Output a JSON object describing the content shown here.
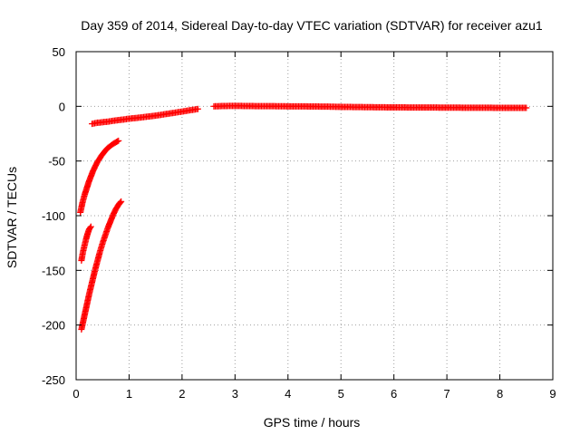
{
  "chart_data": {
    "type": "scatter",
    "title": "Day 359 of 2014, Sidereal Day-to-day VTEC variation (SDTVAR) for receiver azu1",
    "xlabel": "GPS time / hours",
    "ylabel": "SDTVAR / TECUs",
    "xlim": [
      0,
      9
    ],
    "ylim": [
      -250,
      50
    ],
    "xticks": [
      "0",
      "1",
      "2",
      "3",
      "4",
      "5",
      "6",
      "7",
      "8",
      "9"
    ],
    "yticks": [
      "50",
      "0",
      "-50",
      "-100",
      "-150",
      "-200",
      "-250"
    ],
    "grid": true,
    "legend": "none",
    "marker": "plus",
    "color": "#ff0000",
    "series": [
      {
        "x": [
          0.3,
          0.35,
          0.4,
          0.45,
          0.5,
          0.55,
          0.6,
          0.65,
          0.7,
          0.75,
          0.8,
          0.85,
          0.9,
          0.95,
          1.0,
          1.1,
          1.2,
          1.3,
          1.4,
          1.5,
          1.6,
          1.7,
          1.8,
          1.9,
          2.0,
          2.1,
          2.2,
          2.3
        ],
        "y": [
          -16,
          -15.5,
          -15,
          -14.8,
          -14.5,
          -14.2,
          -14,
          -13.6,
          -13.2,
          -12.9,
          -12.6,
          -12.3,
          -12,
          -11.6,
          -11.3,
          -10.8,
          -10.3,
          -9.7,
          -9.1,
          -8.5,
          -7.8,
          -7,
          -6.3,
          -5.5,
          -4.8,
          -4,
          -3.2,
          -2.4
        ]
      },
      {
        "x": [
          2.6,
          2.8,
          3.0,
          3.2,
          3.4,
          3.6,
          3.8,
          4.0,
          4.2,
          4.4,
          4.6,
          4.8,
          5.0,
          5.2,
          5.4,
          5.6,
          5.8,
          6.0,
          6.2,
          6.4,
          6.6,
          6.8,
          7.0,
          7.2,
          7.4,
          7.6,
          7.8,
          8.0,
          8.2,
          8.4,
          8.5
        ],
        "y": [
          0,
          0.3,
          0.4,
          0.3,
          0.2,
          0.2,
          0.1,
          0,
          0,
          -0.1,
          -0.2,
          -0.3,
          -0.5,
          -0.6,
          -0.7,
          -0.8,
          -0.9,
          -1,
          -1,
          -1.1,
          -1.1,
          -1.1,
          -1.2,
          -1.2,
          -1.3,
          -1.3,
          -1.3,
          -1.4,
          -1.4,
          -1.4,
          -1.4
        ]
      },
      {
        "x": [
          0.08,
          0.12,
          0.16,
          0.2,
          0.24,
          0.28,
          0.32,
          0.36,
          0.4,
          0.44,
          0.48,
          0.52,
          0.56,
          0.6,
          0.64,
          0.68,
          0.72,
          0.76,
          0.8
        ],
        "y": [
          -97,
          -88,
          -81,
          -75,
          -69,
          -64,
          -59,
          -55,
          -51,
          -48,
          -45,
          -42.5,
          -40,
          -38,
          -36.5,
          -35,
          -33.7,
          -32.6,
          -31.5
        ]
      },
      {
        "x": [
          0.1,
          0.13,
          0.16,
          0.19,
          0.22,
          0.25,
          0.28
        ],
        "y": [
          -141,
          -133,
          -127,
          -121,
          -116,
          -112,
          -110
        ]
      },
      {
        "x": [
          0.1,
          0.15,
          0.2,
          0.25,
          0.3,
          0.35,
          0.4,
          0.45,
          0.5,
          0.55,
          0.6,
          0.65,
          0.7,
          0.75,
          0.8,
          0.85
        ],
        "y": [
          -204,
          -193,
          -182,
          -171,
          -161,
          -151,
          -142,
          -133,
          -125,
          -118,
          -111,
          -105,
          -99,
          -94,
          -90,
          -87
        ]
      }
    ]
  }
}
